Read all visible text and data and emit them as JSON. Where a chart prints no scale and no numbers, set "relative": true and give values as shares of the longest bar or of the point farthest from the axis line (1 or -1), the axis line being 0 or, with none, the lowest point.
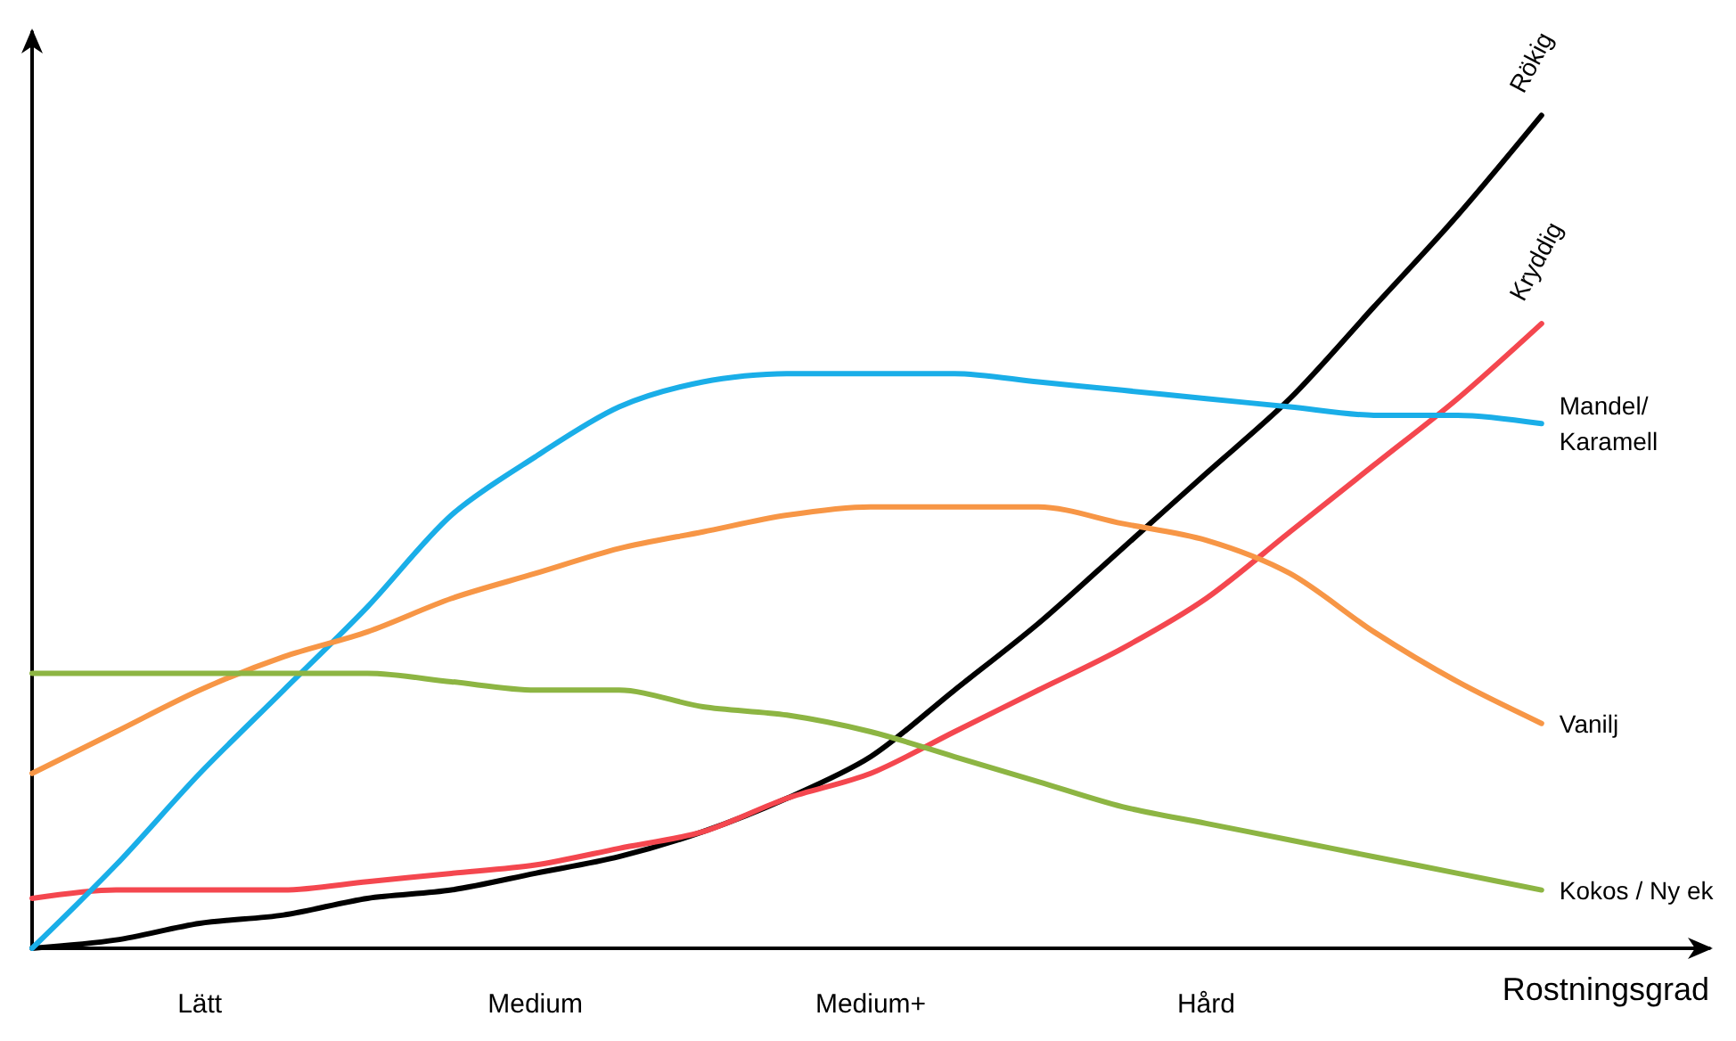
{
  "chart_data": {
    "type": "line",
    "relative": true,
    "xlabel": "Rostningsgrad",
    "categories": [
      null,
      null,
      "Lätt",
      null,
      null,
      null,
      "Medium",
      null,
      null,
      null,
      "Medium+",
      null,
      null,
      null,
      "Hård",
      null,
      null,
      null,
      null,
      null,
      null
    ],
    "grid": false,
    "legend": false,
    "marker": "none",
    "series": [
      {
        "name": "Rökig",
        "color": "#000000",
        "values": [
          0,
          0.01,
          0.03,
          0.04,
          0.06,
          0.07,
          0.09,
          0.11,
          0.14,
          0.18,
          0.23,
          0.31,
          0.39,
          0.48,
          0.57,
          0.66,
          0.77,
          0.88,
          1,
          null,
          null
        ]
      },
      {
        "name": "Kryddig",
        "color": "#f4474f",
        "values": [
          0.06,
          0.07,
          0.07,
          0.07,
          0.08,
          0.09,
          0.1,
          0.12,
          0.14,
          0.18,
          0.21,
          0.26,
          0.31,
          0.36,
          0.42,
          0.5,
          0.58,
          0.66,
          0.75,
          null,
          null
        ]
      },
      {
        "name": "Mandel/\nKaramell",
        "color": "#1aaee8",
        "values": [
          0,
          0.1,
          0.21,
          0.31,
          0.41,
          0.52,
          0.59,
          0.65,
          0.68,
          0.69,
          0.69,
          0.69,
          0.68,
          0.67,
          0.66,
          0.65,
          0.64,
          0.64,
          0.63,
          null,
          null
        ]
      },
      {
        "name": "Vanilj",
        "color": "#f79646",
        "values": [
          0.21,
          0.26,
          0.31,
          0.35,
          0.38,
          0.42,
          0.45,
          0.48,
          0.5,
          0.52,
          0.53,
          0.53,
          0.53,
          0.51,
          0.49,
          0.45,
          0.38,
          0.32,
          0.27,
          null,
          null
        ]
      },
      {
        "name": "Kokos / Ny ek",
        "color": "#8db543",
        "values": [
          0.33,
          0.33,
          0.33,
          0.33,
          0.33,
          0.32,
          0.31,
          0.31,
          0.29,
          0.28,
          0.26,
          0.23,
          0.2,
          0.17,
          0.15,
          0.13,
          0.11,
          0.09,
          0.07,
          null,
          null
        ]
      }
    ]
  }
}
